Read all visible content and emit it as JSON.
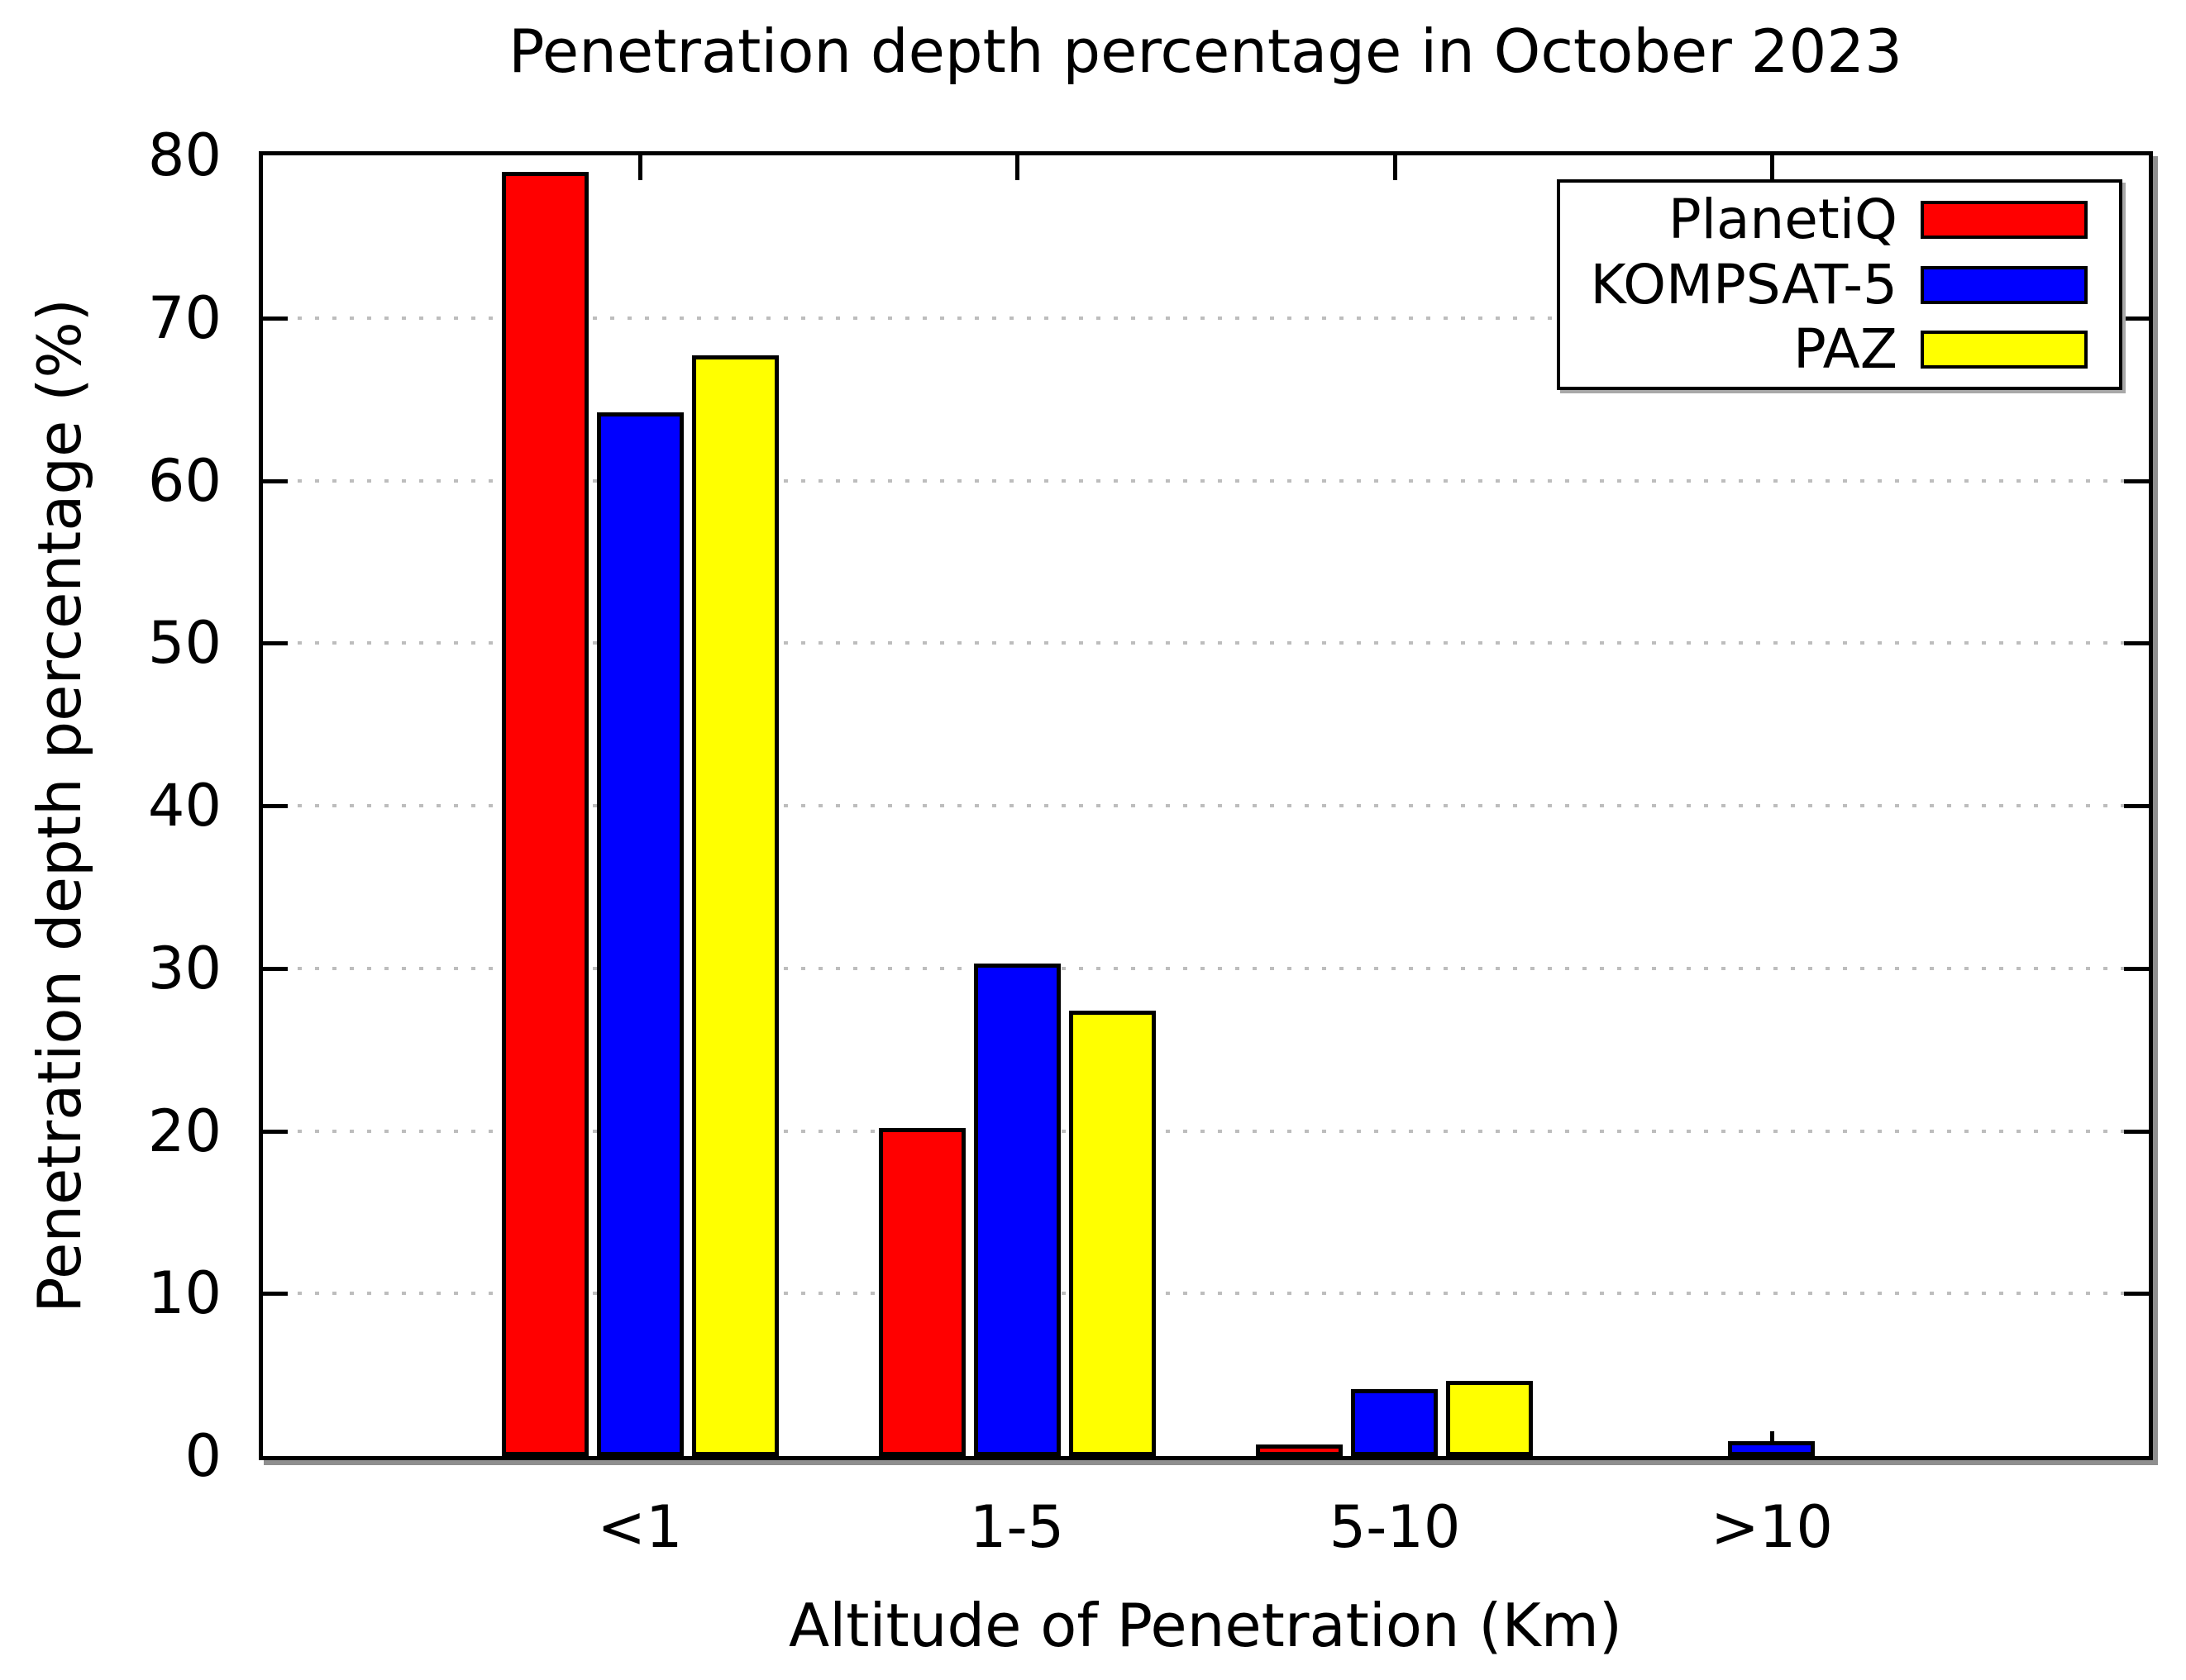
{
  "chart_data": {
    "type": "bar",
    "title": "Penetration depth percentage in October 2023",
    "xlabel": "Altitude of Penetration (Km)",
    "ylabel": "Penetration depth percentage (%)",
    "categories": [
      "<1",
      "1-5",
      "5-10",
      ">10"
    ],
    "series": [
      {
        "name": "PlanetiQ",
        "color": "#ff0000",
        "values": [
          79.0,
          20.2,
          0.7,
          0
        ]
      },
      {
        "name": "KOMPSAT-5",
        "color": "#0000ff",
        "values": [
          64.2,
          30.3,
          4.1,
          0.9
        ]
      },
      {
        "name": "PAZ",
        "color": "#ffff00",
        "values": [
          67.7,
          27.4,
          4.6,
          0
        ]
      }
    ],
    "ylim": [
      0,
      80
    ],
    "ytick_step": 10,
    "yticks": [
      0,
      10,
      20,
      30,
      40,
      50,
      60,
      70,
      80
    ],
    "grid": "horizontal-dotted",
    "grid_color": "#bdbdbd",
    "bar_border_color": "#000000",
    "legend_position": "top-right",
    "legend_order": [
      "PlanetiQ",
      "KOMPSAT-5",
      "PAZ"
    ]
  }
}
